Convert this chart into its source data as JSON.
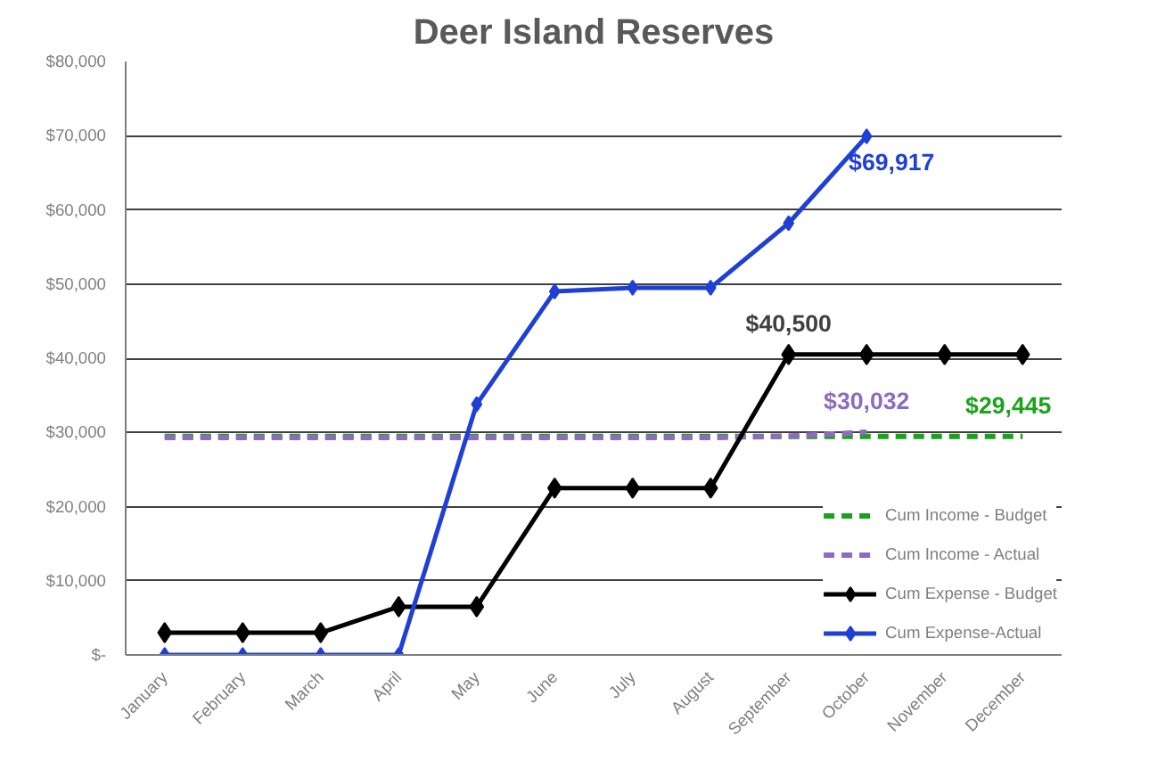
{
  "chart_data": {
    "type": "line",
    "title": "Deer Island Reserves",
    "categories": [
      "January",
      "February",
      "March",
      "April",
      "May",
      "June",
      "July",
      "August",
      "September",
      "October",
      "November",
      "December"
    ],
    "series": [
      {
        "name": "Cum Income - Budget",
        "color": "#1aa31a",
        "line_style": "dashed",
        "marker": "none",
        "values": [
          29445,
          29445,
          29445,
          29445,
          29445,
          29445,
          29445,
          29445,
          29445,
          29445,
          29445,
          29445
        ]
      },
      {
        "name": "Cum Income - Actual",
        "color": "#8e6bbf",
        "line_style": "dashed",
        "marker": "none",
        "values": [
          29300,
          29300,
          29300,
          29300,
          29300,
          29300,
          29300,
          29300,
          29500,
          30032,
          null,
          null
        ]
      },
      {
        "name": "Cum Expense - Budget",
        "color": "#000000",
        "line_style": "solid",
        "marker": "diamond",
        "values": [
          3000,
          3000,
          3000,
          6500,
          6500,
          22500,
          22500,
          22500,
          40500,
          40500,
          40500,
          40500
        ]
      },
      {
        "name": "Cum Expense-Actual",
        "color": "#1f3fd6",
        "line_style": "solid",
        "marker": "diamond",
        "values": [
          0,
          0,
          0,
          0,
          33800,
          49000,
          49500,
          49500,
          58200,
          69917,
          null,
          null
        ]
      }
    ],
    "ylim": [
      0,
      80000
    ],
    "yticks": [
      {
        "value": 0,
        "label": "$-"
      },
      {
        "value": 10000,
        "label": "$10,000"
      },
      {
        "value": 20000,
        "label": "$20,000"
      },
      {
        "value": 30000,
        "label": "$30,000"
      },
      {
        "value": 40000,
        "label": "$40,000"
      },
      {
        "value": 50000,
        "label": "$50,000"
      },
      {
        "value": 60000,
        "label": "$60,000"
      },
      {
        "value": 70000,
        "label": "$70,000"
      },
      {
        "value": 80000,
        "label": "$80,000"
      }
    ],
    "grid": "y",
    "legend": "bottom right",
    "annotations": [
      {
        "text": "$69,917",
        "x": "October",
        "y": 69917
      },
      {
        "text": "$40,500",
        "x": "September",
        "y": 40500
      },
      {
        "text": "$30,032",
        "x": "October",
        "y": 30032
      },
      {
        "text": "$29,445",
        "x": "December",
        "y": 29445
      }
    ]
  }
}
